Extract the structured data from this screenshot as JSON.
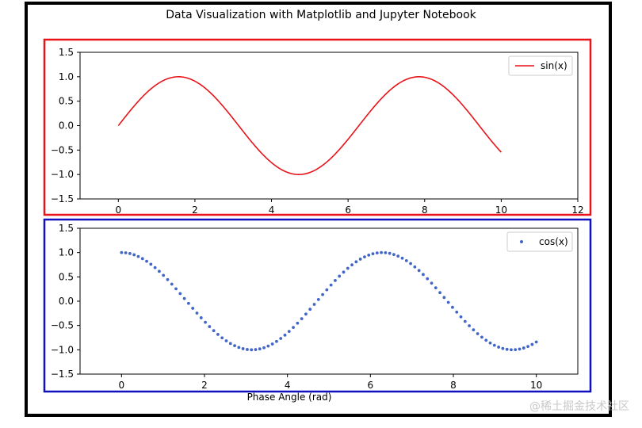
{
  "figure": {
    "title": "Data Visualization with Matplotlib and Jupyter Notebook",
    "watermark": "@稀土掘金技术社区",
    "highlight_colors": {
      "top": "#e8141a",
      "bottom": "#1010c0"
    }
  },
  "chart_data": [
    {
      "type": "line",
      "title": "",
      "xlabel": "",
      "ylabel": "",
      "function": "sin(x)",
      "x_range": [
        0,
        10
      ],
      "xlim": [
        -1,
        12
      ],
      "ylim": [
        -1.5,
        1.5
      ],
      "xticks": [
        0,
        2,
        4,
        6,
        8,
        10,
        12
      ],
      "yticks": [
        -1.5,
        -1.0,
        -0.5,
        0.0,
        0.5,
        1.0,
        1.5
      ],
      "ytick_labels": [
        "−1.5",
        "−1.0",
        "−0.5",
        "0.0",
        "0.5",
        "1.0",
        "1.5"
      ],
      "series": [
        {
          "name": "sin(x)",
          "color": "#e8141a",
          "marker": "none"
        }
      ],
      "legend": "top-right",
      "grid": false
    },
    {
      "type": "scatter",
      "title": "",
      "xlabel": "Phase Angle (rad)",
      "ylabel": "",
      "function": "cos(x)",
      "x_range": [
        0,
        10
      ],
      "point_count": 100,
      "xlim": [
        -1,
        11
      ],
      "ylim": [
        -1.5,
        1.5
      ],
      "xticks": [
        0,
        2,
        4,
        6,
        8,
        10
      ],
      "yticks": [
        -1.5,
        -1.0,
        -0.5,
        0.0,
        0.5,
        1.0,
        1.5
      ],
      "ytick_labels": [
        "−1.5",
        "−1.0",
        "−0.5",
        "0.0",
        "0.5",
        "1.0",
        "1.5"
      ],
      "series": [
        {
          "name": "cos(x)",
          "color": "#4166c8",
          "marker": "dot"
        }
      ],
      "legend": "top-right",
      "grid": false
    }
  ]
}
